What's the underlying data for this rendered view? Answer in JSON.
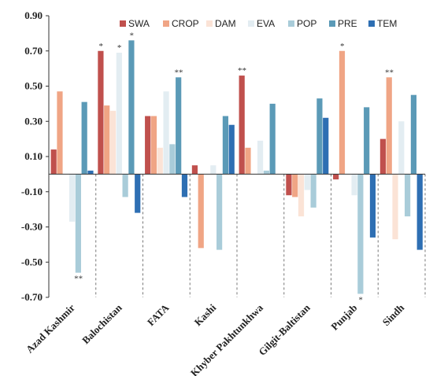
{
  "chart_data": {
    "type": "bar",
    "categories": [
      "Azad Kashmir",
      "Balochistan",
      "FATA",
      "Kashi",
      "Khyber Pakhtunkhwa",
      "Gilgit-Baltistan",
      "Punjab",
      "Sindh"
    ],
    "ylim": [
      -0.7,
      0.9
    ],
    "yticks": [
      0.9,
      0.7,
      0.5,
      0.3,
      0.1,
      -0.1,
      -0.3,
      -0.5,
      -0.7
    ],
    "ytick_labels": [
      "0.90",
      "0.70",
      "0.50",
      "0.30",
      "0.10",
      "-0.10",
      "-0.30",
      "-0.50",
      "-0.70"
    ],
    "legend_position": "top-right",
    "grid": false,
    "series": [
      {
        "name": "SWA",
        "color": "#c0504d",
        "values": [
          0.14,
          0.7,
          0.33,
          0.05,
          0.56,
          -0.12,
          -0.03,
          0.2
        ]
      },
      {
        "name": "CROP",
        "color": "#f0a585",
        "values": [
          0.47,
          0.39,
          0.33,
          -0.42,
          0.15,
          -0.13,
          0.7,
          0.55
        ]
      },
      {
        "name": "DAM",
        "color": "#fbe3d6",
        "values": [
          0.0,
          0.36,
          0.15,
          0.0,
          0.0,
          -0.24,
          0.0,
          -0.37
        ]
      },
      {
        "name": "EVA",
        "color": "#e3edf2",
        "values": [
          -0.27,
          0.69,
          0.47,
          0.05,
          0.19,
          -0.09,
          -0.12,
          0.3
        ]
      },
      {
        "name": "POP",
        "color": "#a9ccd9",
        "values": [
          -0.56,
          -0.13,
          0.17,
          -0.43,
          0.02,
          -0.19,
          -0.68,
          -0.24
        ]
      },
      {
        "name": "PRE",
        "color": "#5b9ab7",
        "values": [
          0.41,
          0.76,
          0.55,
          0.33,
          0.4,
          0.43,
          0.38,
          0.45
        ]
      },
      {
        "name": "TEM",
        "color": "#2e6fb3",
        "values": [
          0.02,
          -0.22,
          -0.13,
          0.28,
          0.0,
          0.32,
          -0.36,
          -0.43
        ]
      }
    ],
    "annotations": [
      {
        "text": "**",
        "category": "Azad Kashmir",
        "series": "POP"
      },
      {
        "text": "*",
        "category": "Balochistan",
        "series": "SWA"
      },
      {
        "text": "*",
        "category": "Balochistan",
        "series": "EVA"
      },
      {
        "text": "*",
        "category": "Balochistan",
        "series": "PRE"
      },
      {
        "text": "**",
        "category": "FATA",
        "series": "PRE"
      },
      {
        "text": "**",
        "category": "Khyber Pakhtunkhwa",
        "series": "SWA"
      },
      {
        "text": "*",
        "category": "Punjab",
        "series": "CROP"
      },
      {
        "text": "*",
        "category": "Punjab",
        "series": "POP"
      },
      {
        "text": "**",
        "category": "Sindh",
        "series": "CROP"
      }
    ]
  }
}
